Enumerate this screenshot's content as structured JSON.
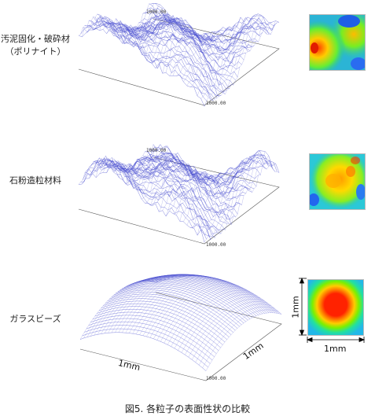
{
  "rows": [
    {
      "label_lines": [
        "汚泥固化・破砕材",
        "（ポリナイト）"
      ],
      "axis_top": "1000.00",
      "axis_bottom": "1000.00",
      "surface": "rough",
      "heatmap": "mixed-blue"
    },
    {
      "label_lines": [
        "石粉造粒材料"
      ],
      "axis_top": "1000.00",
      "axis_bottom": "1000.00",
      "surface": "rough",
      "heatmap": "mixed-yellow"
    },
    {
      "label_lines": [
        "ガラスビーズ"
      ],
      "axis_top": "",
      "axis_bottom": "1000.00",
      "surface": "dome",
      "heatmap": "concentric"
    }
  ],
  "dimensions": {
    "surface_x": "1mm",
    "surface_y": "1mm",
    "heat_x": "1mm",
    "heat_y": "1mm"
  },
  "caption": "図5. 各粒子の表面性状の比較",
  "colors": {
    "mesh": "#4a4fd0",
    "box": "#555555"
  }
}
